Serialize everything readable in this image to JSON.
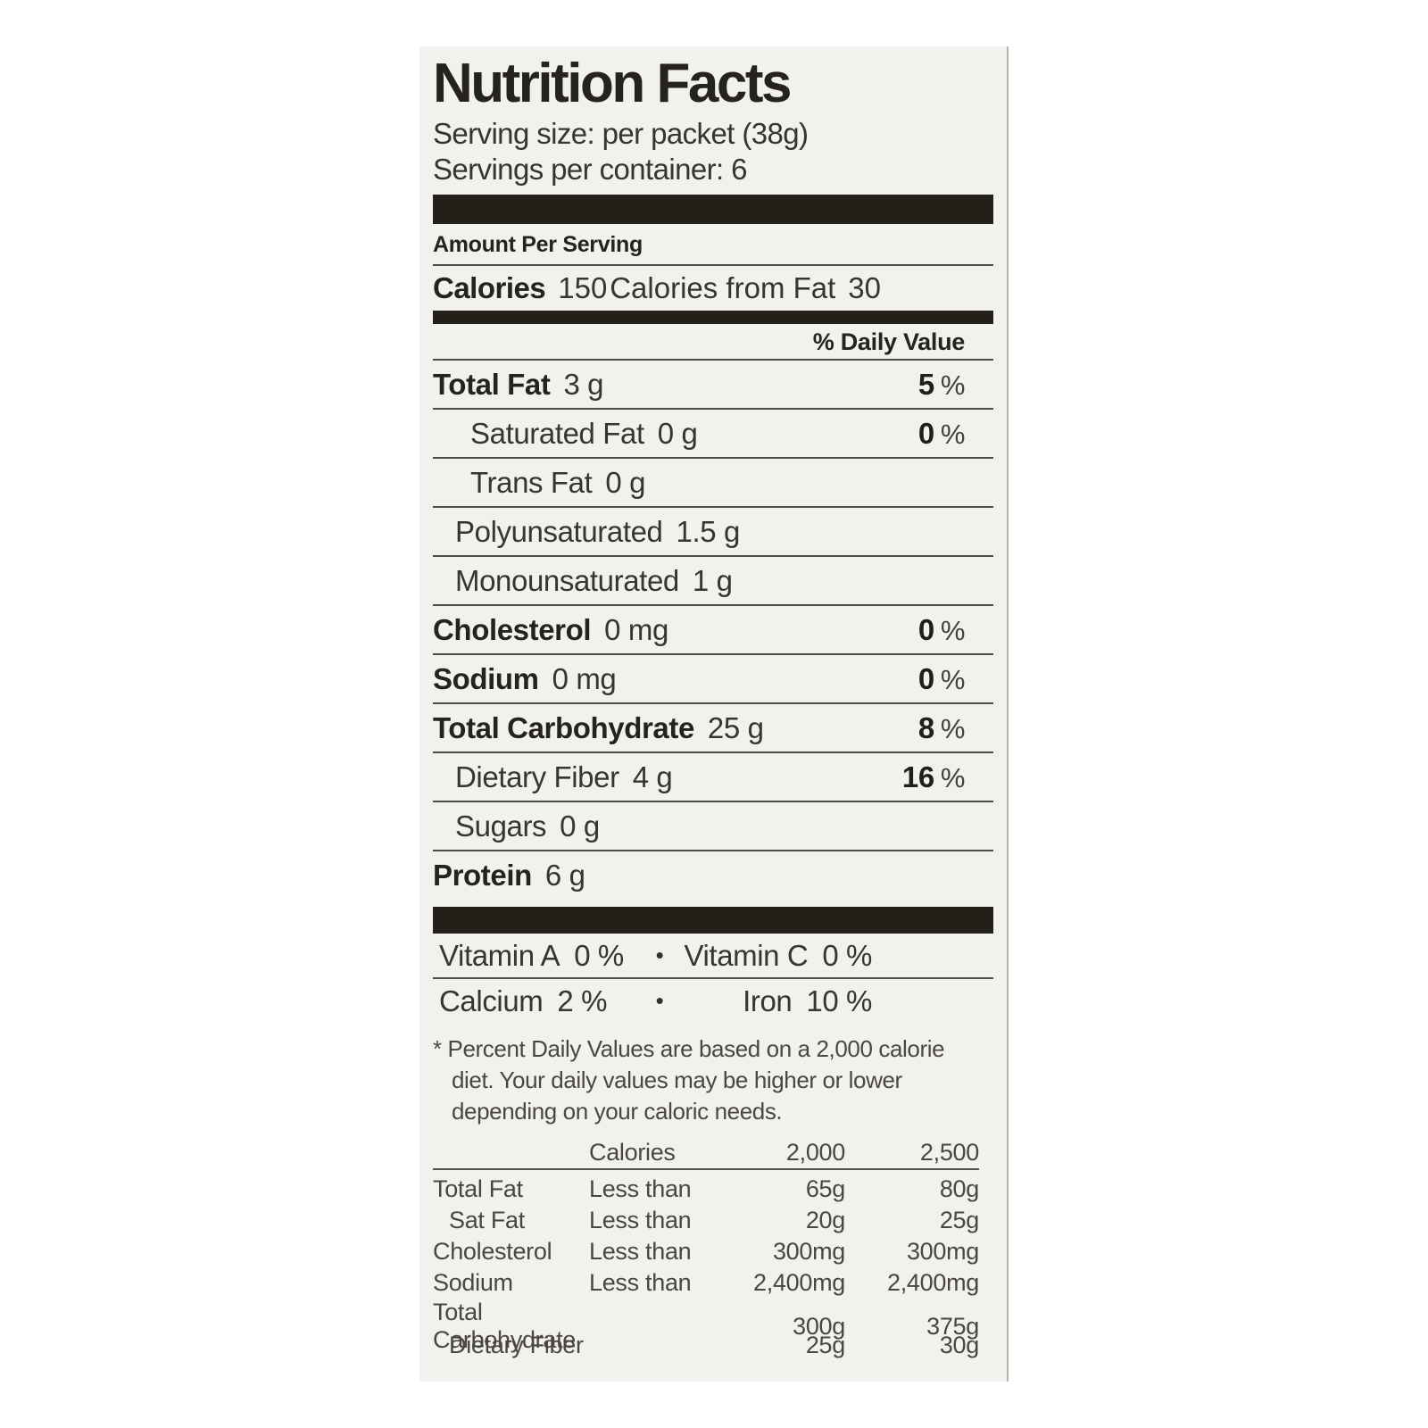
{
  "label": {
    "title": "Nutrition Facts",
    "serving_size": "Serving size: per packet (38g)",
    "servings_per_container": "Servings per container: 6",
    "amount_per_serving": "Amount Per Serving",
    "calories": {
      "label": "Calories",
      "value": "150",
      "from_fat_label": "Calories from Fat",
      "from_fat_value": "30"
    },
    "daily_value_header": "% Daily Value",
    "percent_sign": "%",
    "bullet": "•",
    "nutrient_rows": [
      {
        "name": "Total Fat",
        "amount": "3 g",
        "dv": "5",
        "bold": true,
        "indent": 0
      },
      {
        "name": "Saturated Fat",
        "amount": "0 g",
        "dv": "0",
        "bold": false,
        "indent": 2
      },
      {
        "name": "Trans Fat",
        "amount": "0 g",
        "dv": "",
        "bold": false,
        "indent": 2
      },
      {
        "name": "Polyunsaturated",
        "amount": "1.5 g",
        "dv": "",
        "bold": false,
        "indent": 1
      },
      {
        "name": "Monounsaturated",
        "amount": "1 g",
        "dv": "",
        "bold": false,
        "indent": 1
      },
      {
        "name": "Cholesterol",
        "amount": "0 mg",
        "dv": "0",
        "bold": true,
        "indent": 0
      },
      {
        "name": "Sodium",
        "amount": "0 mg",
        "dv": "0",
        "bold": true,
        "indent": 0
      },
      {
        "name": "Total Carbohydrate",
        "amount": "25 g",
        "dv": "8",
        "bold": true,
        "indent": 0
      },
      {
        "name": "Dietary Fiber",
        "amount": "4 g",
        "dv": "16",
        "bold": false,
        "indent": 1
      },
      {
        "name": "Sugars",
        "amount": "0 g",
        "dv": "",
        "bold": false,
        "indent": 1
      },
      {
        "name": "Protein",
        "amount": "6 g",
        "dv": "",
        "bold": true,
        "indent": 0
      }
    ],
    "micronutrient_rows": [
      {
        "left_name": "Vitamin A",
        "left_value": "0 %",
        "right_name": "Vitamin C",
        "right_value": "0 %"
      },
      {
        "left_name": "Calcium",
        "left_value": "2 %",
        "right_name": "Iron",
        "right_value": "10 %"
      }
    ],
    "footnote_lines": [
      "* Percent Daily Values are based on a 2,000 calorie",
      "diet. Your daily values may be higher or lower",
      "depending on your caloric needs."
    ],
    "reference_table": {
      "header": [
        "",
        "Calories",
        "2,000",
        "2,500"
      ],
      "rows": [
        {
          "cells": [
            "Total Fat",
            "Less than",
            "65g",
            "80g"
          ],
          "indent": 0
        },
        {
          "cells": [
            "Sat Fat",
            "Less than",
            "20g",
            "25g"
          ],
          "indent": 1
        },
        {
          "cells": [
            "Cholesterol",
            "Less than",
            "300mg",
            "300mg"
          ],
          "indent": 0
        },
        {
          "cells": [
            "Sodium",
            "Less than",
            "2,400mg",
            "2,400mg"
          ],
          "indent": 0
        },
        {
          "cells": [
            "Total Carbohydrate",
            "",
            "300g",
            "375g"
          ],
          "indent": 0
        },
        {
          "cells": [
            "Dietary Fiber",
            "",
            "25g",
            "30g"
          ],
          "indent": 1
        }
      ]
    }
  },
  "colors": {
    "panel_background": "#f1f2ee",
    "divider_bar": "#251f1a",
    "bold_text": "#262220",
    "body_text": "#38342e",
    "muted_text": "#4b4640"
  }
}
